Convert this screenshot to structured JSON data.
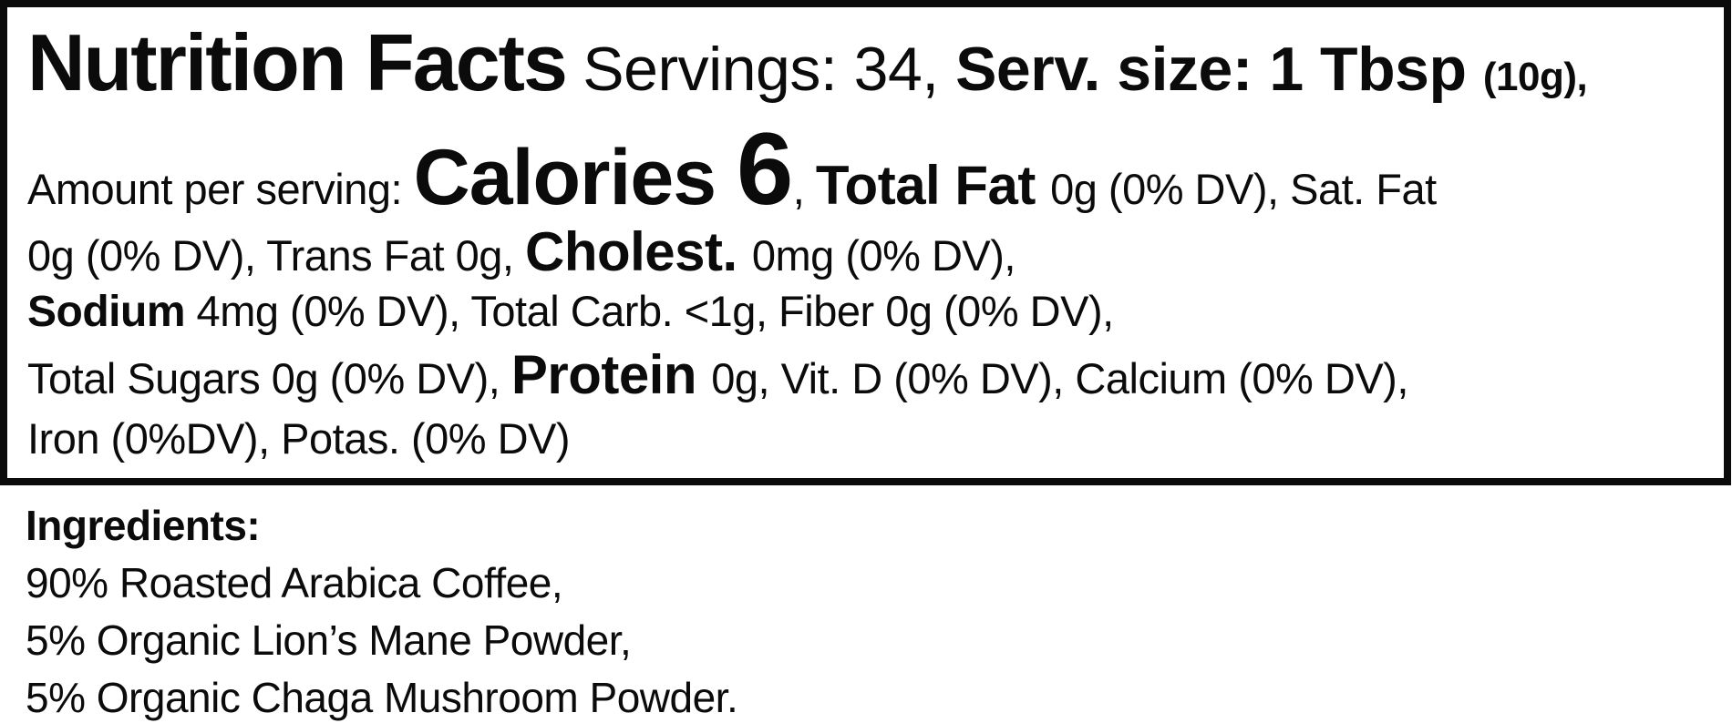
{
  "page_bg": "#ffffff",
  "text_color": "#0b0b0b",
  "nutrition_panel": {
    "border_color": "#0b0b0b",
    "lines": [
      {
        "segments": [
          {
            "text": "Nutrition Facts",
            "style": "title"
          },
          {
            "text": " Servings: 34, ",
            "style": "l1-regular"
          },
          {
            "text": "Serv. size: 1 Tbsp ",
            "style": "l1-bold"
          },
          {
            "text": "(10g),",
            "style": "l1-bold-small"
          }
        ]
      },
      {
        "segments": [
          {
            "text": "Amount per serving: ",
            "style": "body"
          },
          {
            "text": "Calories ",
            "style": "calories-label"
          },
          {
            "text": "6",
            "style": "calories-value"
          },
          {
            "text": ", ",
            "style": "body"
          },
          {
            "text": "Total Fat ",
            "style": "emphasis"
          },
          {
            "text": "0g (0% DV), Sat. Fat",
            "style": "body"
          }
        ]
      },
      {
        "segments": [
          {
            "text": "0g (0% DV), Trans Fat 0g, ",
            "style": "body"
          },
          {
            "text": "Cholest. ",
            "style": "emphasis"
          },
          {
            "text": "0mg (0% DV),",
            "style": "body"
          }
        ]
      },
      {
        "segments": [
          {
            "text": "Sodium",
            "style": "body-bold"
          },
          {
            "text": " 4mg (0% DV), Total Carb. <1g, Fiber 0g (0% DV),",
            "style": "body"
          }
        ]
      },
      {
        "segments": [
          {
            "text": "Total Sugars 0g (0% DV), ",
            "style": "body"
          },
          {
            "text": "Protein ",
            "style": "emphasis"
          },
          {
            "text": "0g, Vit. D (0% DV), Calcium (0% DV),",
            "style": "body"
          }
        ]
      },
      {
        "segments": [
          {
            "text": "Iron (0%DV), Potas. (0% DV)",
            "style": "body"
          }
        ]
      }
    ]
  },
  "ingredients": {
    "heading": "Ingredients:",
    "items": [
      "90% Roasted Arabica Coffee,",
      "5% Organic Lion’s Mane Powder,",
      "5% Organic Chaga Mushroom Powder."
    ]
  }
}
